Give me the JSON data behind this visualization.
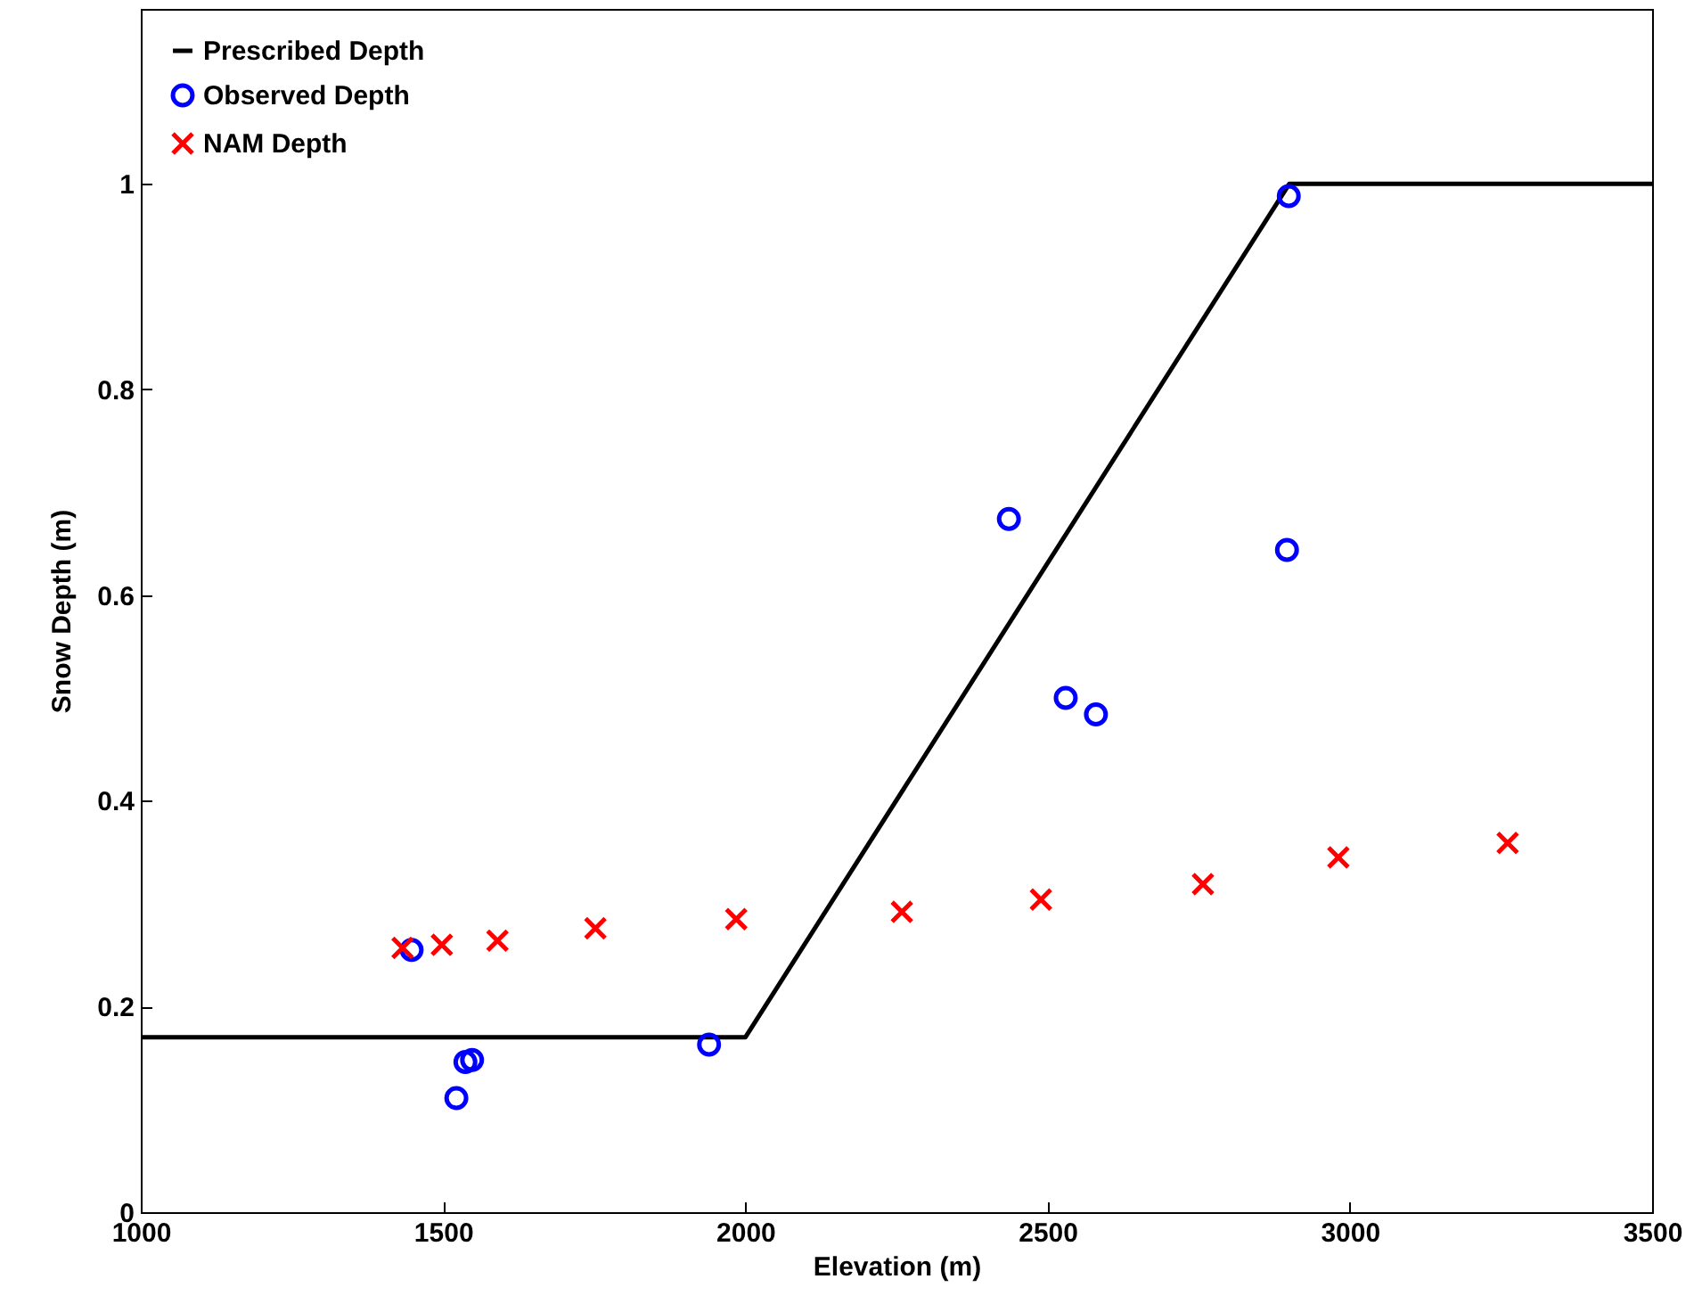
{
  "chart_data": {
    "type": "scatter",
    "xlabel": "Elevation (m)",
    "ylabel": "Snow Depth (m)",
    "xlim": [
      1000,
      3500
    ],
    "ylim": [
      0,
      1.17
    ],
    "xticks": [
      1000,
      1500,
      2000,
      2500,
      3000,
      3500
    ],
    "yticks": [
      0,
      0.2,
      0.4,
      0.6,
      0.8,
      1
    ],
    "grid": false,
    "legend": "top left",
    "series": [
      {
        "name": "Prescribed Depth",
        "type": "line",
        "color": "#000000",
        "line_style": "solid",
        "marker": "none",
        "x": [
          1000,
          2000,
          2900,
          3500
        ],
        "values": [
          0.17,
          0.17,
          1.0,
          1.0
        ]
      },
      {
        "name": "Observed Depth",
        "color": "#0000ff",
        "marker": "circle",
        "x": [
          1448,
          1522,
          1537,
          1548,
          1940,
          2436,
          2530,
          2580,
          2896,
          2899
        ],
        "values": [
          0.255,
          0.111,
          0.146,
          0.148,
          0.163,
          0.674,
          0.5,
          0.484,
          0.644,
          0.988
        ]
      },
      {
        "name": "NAM Depth",
        "color": "#ff0000",
        "marker": "cross",
        "x": [
          1433,
          1498,
          1590,
          1752,
          1985,
          2259,
          2489,
          2757,
          2981,
          3261
        ],
        "values": [
          0.257,
          0.26,
          0.264,
          0.276,
          0.285,
          0.292,
          0.304,
          0.319,
          0.345,
          0.359
        ]
      }
    ]
  }
}
